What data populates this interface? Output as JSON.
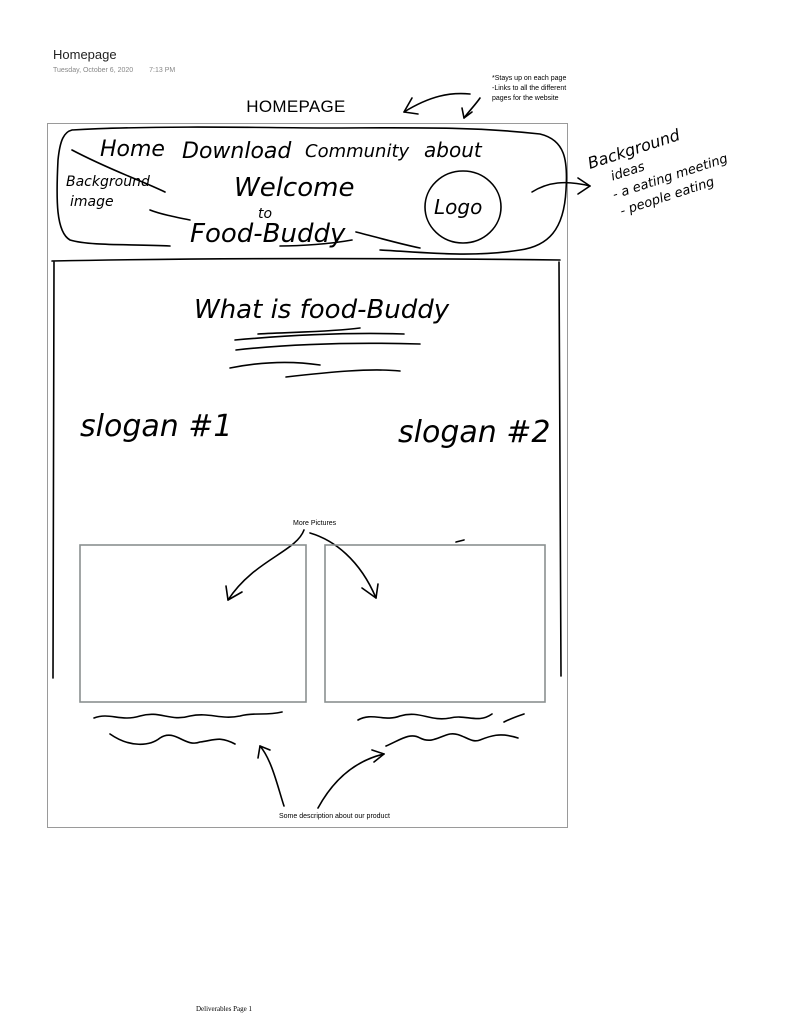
{
  "page": {
    "title": "Homepage",
    "date": "Tuesday, October 6, 2020",
    "time": "7:13 PM",
    "footer": "Deliverables Page 1"
  },
  "sketch": {
    "heading": "HOMEPAGE",
    "top_notes": [
      "*Stays up on each page",
      "-Links to all the different",
      "pages for the website"
    ],
    "nav_items": [
      "Home",
      "Download",
      "Community",
      "about"
    ],
    "background_label": [
      "Background",
      "image"
    ],
    "welcome_lines": [
      "Welcome",
      "to",
      "Food-Buddy"
    ],
    "logo_label": "Logo",
    "side_note": [
      "Background",
      "ideas",
      "- a eating meeting",
      "- people eating"
    ],
    "section_title": "What is food-Buddy",
    "slogan_1": "slogan #1",
    "slogan_2": "slogan #2",
    "more_pictures": "More Pictures",
    "description_note": "Some description about our product"
  }
}
